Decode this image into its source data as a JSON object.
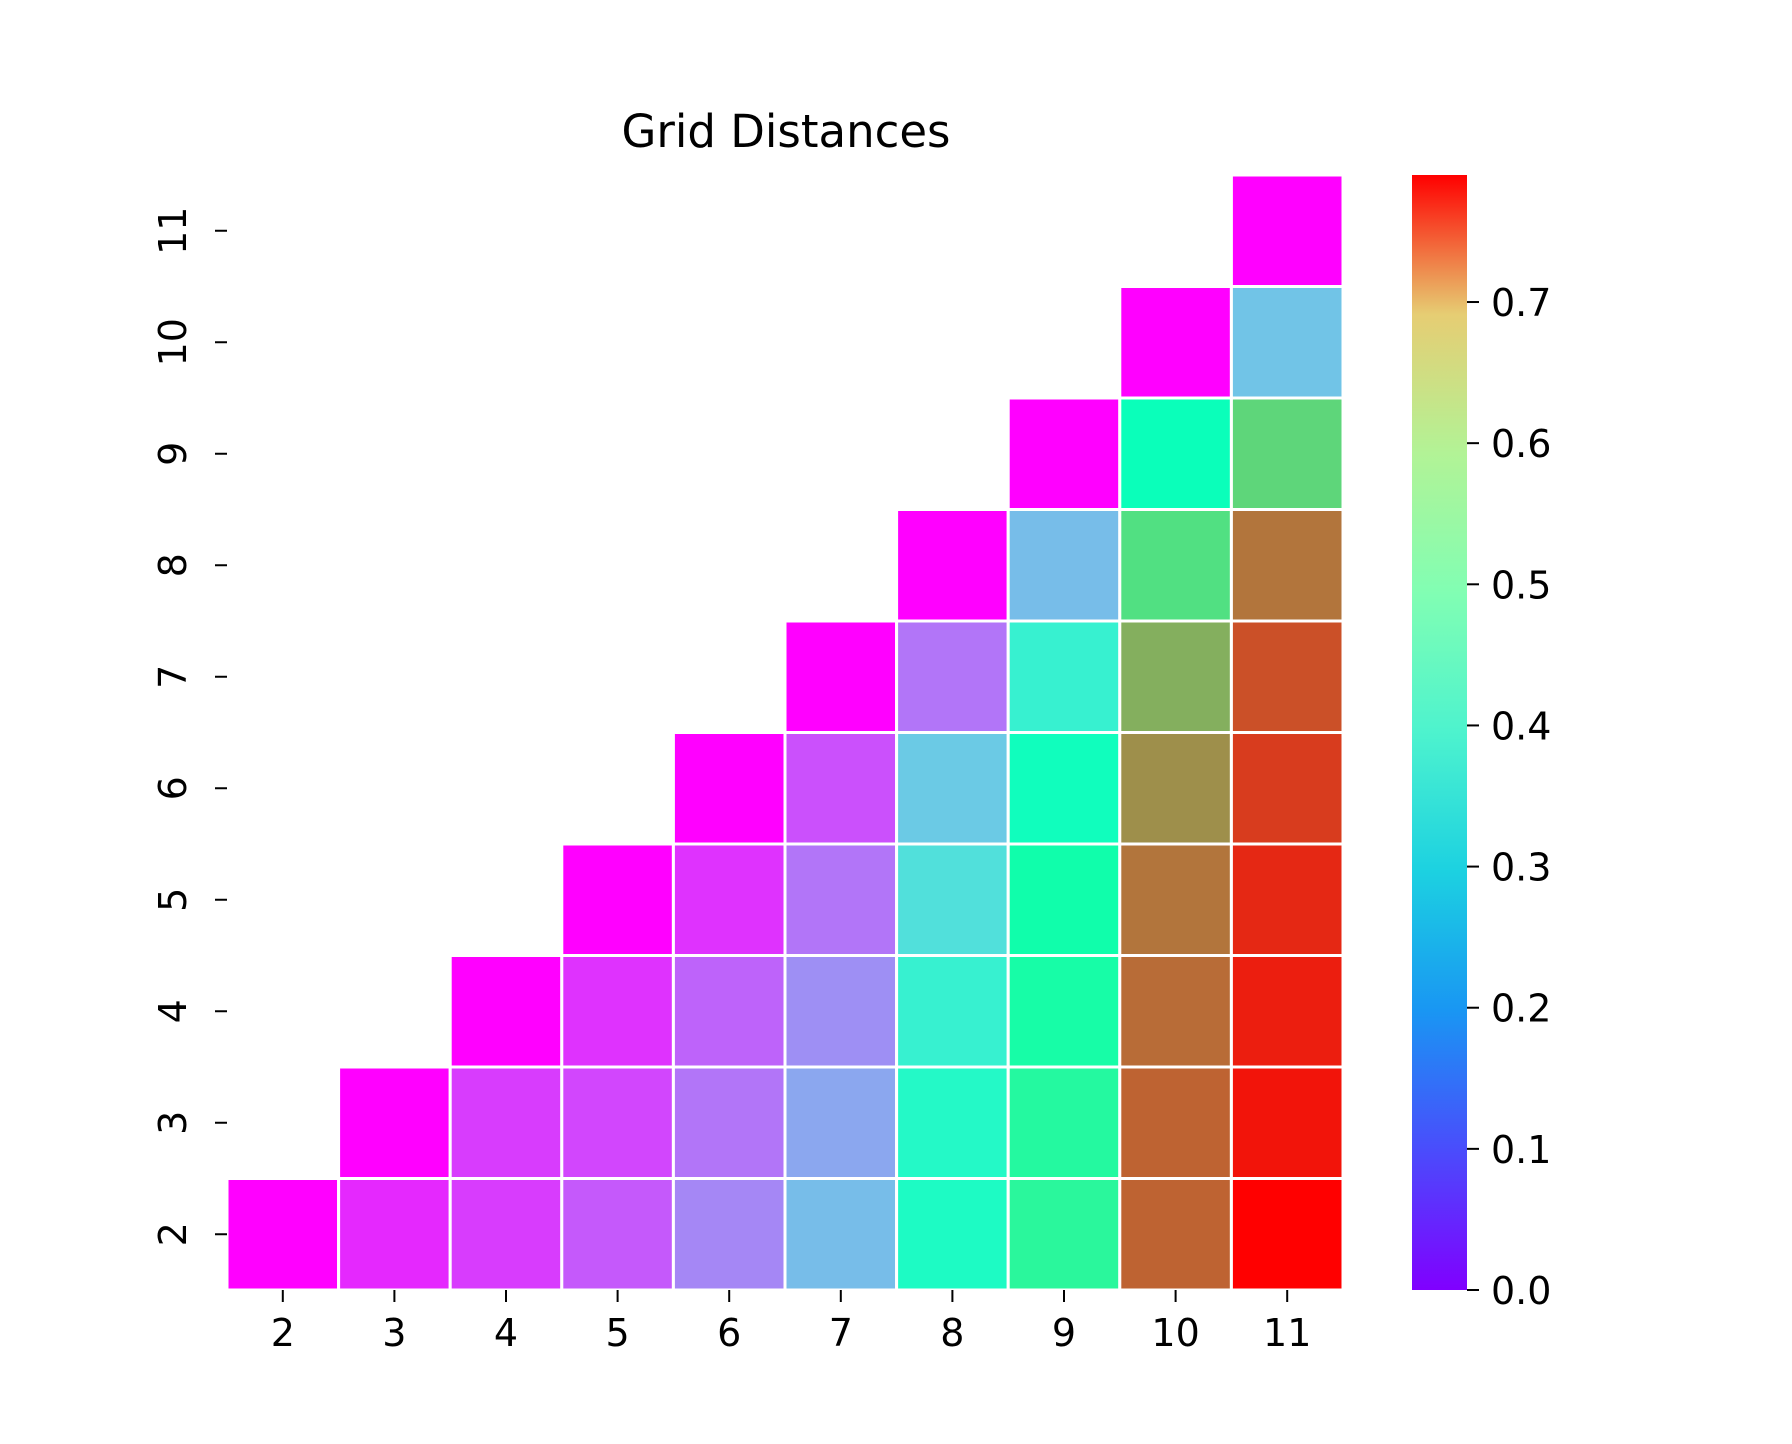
{
  "chart_data": {
    "type": "heatmap",
    "title": "Grid Distances",
    "xlabel": "",
    "ylabel": "",
    "x_categories": [
      "2",
      "3",
      "4",
      "5",
      "6",
      "7",
      "8",
      "9",
      "10",
      "11"
    ],
    "y_categories": [
      "2",
      "3",
      "4",
      "5",
      "6",
      "7",
      "8",
      "9",
      "10",
      "11"
    ],
    "colormap": "rainbow",
    "color_range": [
      0.0,
      0.79
    ],
    "colorbar_ticks": [
      "0.0",
      "0.1",
      "0.2",
      "0.3",
      "0.4",
      "0.5",
      "0.6",
      "0.7"
    ],
    "cell_border_color": "#ffffff",
    "mask": "upper triangle above diagonal hidden",
    "values": [
      [
        0.0,
        0.04,
        0.06,
        0.09,
        0.14,
        0.21,
        0.35,
        0.46,
        0.69,
        0.79
      ],
      [
        null,
        0.0,
        0.06,
        0.07,
        0.12,
        0.18,
        0.34,
        0.45,
        0.69,
        0.77
      ],
      [
        null,
        null,
        0.0,
        0.05,
        0.1,
        0.15,
        0.31,
        0.43,
        0.68,
        0.76
      ],
      [
        null,
        null,
        null,
        0.0,
        0.05,
        0.12,
        0.27,
        0.42,
        0.67,
        0.75
      ],
      [
        null,
        null,
        null,
        null,
        0.0,
        0.08,
        0.23,
        0.37,
        0.64,
        0.73
      ],
      [
        null,
        null,
        null,
        null,
        null,
        0.0,
        0.12,
        0.31,
        0.6,
        0.71
      ],
      [
        null,
        null,
        null,
        null,
        null,
        null,
        0.0,
        0.21,
        0.52,
        0.67
      ],
      [
        null,
        null,
        null,
        null,
        null,
        null,
        null,
        0.0,
        0.38,
        0.54
      ],
      [
        null,
        null,
        null,
        null,
        null,
        null,
        null,
        null,
        0.0,
        0.22
      ],
      [
        null,
        null,
        null,
        null,
        null,
        null,
        null,
        null,
        null,
        0.0
      ]
    ]
  }
}
